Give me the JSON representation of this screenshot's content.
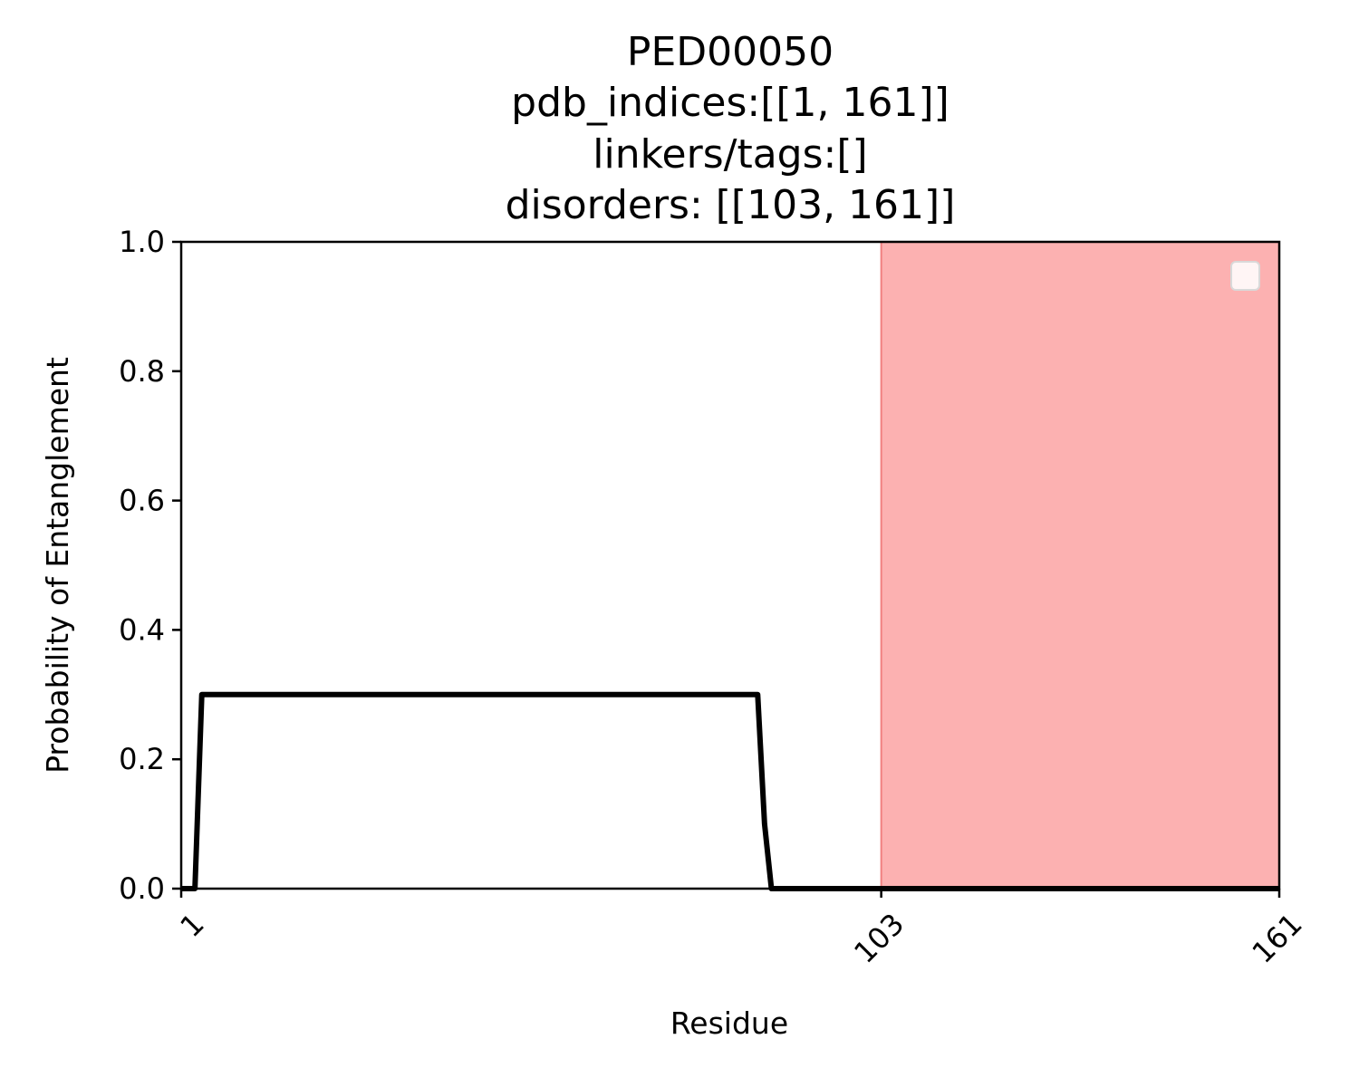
{
  "chart_data": {
    "type": "line",
    "title_lines": [
      "PED00050",
      "pdb_indices:[[1, 161]]",
      "linkers/tags:[]",
      "disorders: [[103, 161]]"
    ],
    "xlabel": "Residue",
    "ylabel": "Probability of Entanglement",
    "xlim": [
      1,
      161
    ],
    "ylim": [
      0,
      1.0
    ],
    "x_ticks": [
      1,
      103,
      161
    ],
    "y_ticks": [
      "0.0",
      "0.2",
      "0.4",
      "0.6",
      "0.8",
      "1.0"
    ],
    "x_tick_rotation_deg": 45,
    "grid": false,
    "legend": {
      "placement": "top-right",
      "entries": []
    },
    "colors": {
      "line": "#000000",
      "disorder_region": "#fcb1b1",
      "disorder_edge": "#f08080"
    },
    "shaded_regions": [
      {
        "label": "disorders",
        "x_start": 103,
        "x_end": 161
      }
    ],
    "series": [
      {
        "x": [
          1,
          3,
          4,
          85,
          86,
          87,
          161
        ],
        "y": [
          0.0,
          0.0,
          0.3,
          0.3,
          0.1,
          0.0,
          0.0
        ]
      }
    ]
  }
}
